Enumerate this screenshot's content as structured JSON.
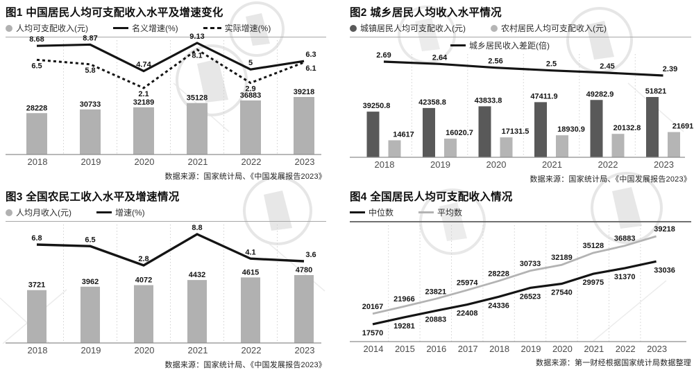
{
  "colors": {
    "bar_gray": "#b1b1b1",
    "bar_dark": "#595959",
    "bar_light": "#b5b5b5",
    "line_black": "#141414",
    "line_gray": "#b3b3b3",
    "grid": "#d0d0d0",
    "axis": "#8d8d8d"
  },
  "charts": [
    {
      "title": "图1 中国居民人均可支配收入水平及增速变化",
      "source": "数据来源：国家统计局、《中国发展报告2023》",
      "legend": [
        [
          {
            "swatch": "dot",
            "color": "#b1b1b1",
            "label": "人均可支配收入(元)"
          },
          {
            "swatch": "line",
            "color": "#141414",
            "label": "名义增速(%)"
          },
          {
            "swatch": "dashed",
            "color": "#141414",
            "label": "实际增速(%)"
          }
        ]
      ],
      "chart_data": {
        "type": "bar+line",
        "categories": [
          "2018",
          "2019",
          "2020",
          "2021",
          "2022",
          "2023"
        ],
        "series": [
          {
            "name": "人均可支配收入(元)",
            "kind": "bar",
            "color": "#b1b1b1",
            "values": [
              28228,
              30733,
              32189,
              35128,
              36883,
              39218
            ],
            "labels": [
              "28228",
              "30733",
              "32189",
              "35128",
              "36883",
              "39218"
            ]
          },
          {
            "name": "名义增速(%)",
            "kind": "line",
            "color": "#141414",
            "values": [
              8.68,
              8.87,
              4.74,
              9.13,
              5,
              6.3
            ],
            "labels": [
              "8.68",
              "8.87",
              "4.74",
              "9.13",
              "5",
              "6.3"
            ]
          },
          {
            "name": "实际增速(%)",
            "kind": "dashed-line",
            "color": "#141414",
            "values": [
              6.5,
              5.8,
              2.1,
              8.1,
              2.9,
              6.1
            ],
            "labels": [
              "6.5",
              "5.8",
              "2.1",
              "8.1",
              "2.9",
              "6.1"
            ]
          }
        ],
        "legend_position": "top",
        "grid": "vertical-dotted"
      }
    },
    {
      "title": "图2 城乡居民人均收入水平情况",
      "source": "数据来源：国家统计局、《中国发展报告2023》",
      "legend": [
        [
          {
            "swatch": "dot",
            "color": "#595959",
            "label": "城镇居民人均可支配收入(元)"
          },
          {
            "swatch": "dot",
            "color": "#b5b5b5",
            "label": "农村居民人均可支配收入(元)"
          }
        ],
        [
          {
            "swatch": "line",
            "color": "#141414",
            "label": "城乡居民收入差距(倍)"
          }
        ]
      ],
      "chart_data": {
        "type": "bar+line",
        "categories": [
          "2018",
          "2019",
          "2020",
          "2021",
          "2022",
          "2023"
        ],
        "series": [
          {
            "name": "城镇居民人均可支配收入(元)",
            "kind": "bar",
            "color": "#595959",
            "values": [
              39250.8,
              42358.8,
              43833.8,
              47411.9,
              49282.9,
              51821
            ],
            "labels": [
              "39250.8",
              "42358.8",
              "43833.8",
              "47411.9",
              "49282.9",
              "51821"
            ]
          },
          {
            "name": "农村居民人均可支配收入(元)",
            "kind": "bar",
            "color": "#b5b5b5",
            "values": [
              14617,
              16020.7,
              17131.5,
              18930.9,
              20132.8,
              21691
            ],
            "labels": [
              "14617",
              "16020.7",
              "17131.5",
              "18930.9",
              "20132.8",
              "21691"
            ]
          },
          {
            "name": "城乡居民收入差距(倍)",
            "kind": "line",
            "color": "#141414",
            "values": [
              2.69,
              2.64,
              2.56,
              2.5,
              2.45,
              2.39
            ],
            "labels": [
              "2.69",
              "2.64",
              "2.56",
              "2.5",
              "2.45",
              "2.39"
            ]
          }
        ],
        "legend_position": "top",
        "grid": "vertical-dotted"
      }
    },
    {
      "title": "图3 全国农民工收入水平及增速情况",
      "source": "数据来源：国家统计局、《中国发展报告2023》",
      "legend": [
        [
          {
            "swatch": "dot",
            "color": "#b1b1b1",
            "label": "人均月收入(元)"
          },
          {
            "swatch": "line",
            "color": "#141414",
            "label": "增速(%)"
          }
        ]
      ],
      "chart_data": {
        "type": "bar+line",
        "categories": [
          "2018",
          "2019",
          "2020",
          "2021",
          "2022",
          "2023"
        ],
        "series": [
          {
            "name": "人均月收入(元)",
            "kind": "bar",
            "color": "#b1b1b1",
            "values": [
              3721,
              3962,
              4072,
              4432,
              4615,
              4780
            ],
            "labels": [
              "3721",
              "3962",
              "4072",
              "4432",
              "4615",
              "4780"
            ]
          },
          {
            "name": "增速(%)",
            "kind": "line",
            "color": "#141414",
            "values": [
              6.8,
              6.5,
              2.8,
              8.8,
              4.1,
              3.6
            ],
            "labels": [
              "6.8",
              "6.5",
              "2.8",
              "8.8",
              "4.1",
              "3.6"
            ]
          }
        ],
        "legend_position": "top",
        "grid": "vertical-dotted"
      }
    },
    {
      "title": "图4 全国居民人均可支配收入情况",
      "source": "数据来源：第一财经根据国家统计局数据整理",
      "legend": [
        [
          {
            "swatch": "line",
            "color": "#141414",
            "label": "中位数"
          },
          {
            "swatch": "line",
            "color": "#b3b3b3",
            "label": "平均数"
          }
        ]
      ],
      "chart_data": {
        "type": "line",
        "categories": [
          "2014",
          "2015",
          "2016",
          "2017",
          "2018",
          "2019",
          "2020",
          "2021",
          "2022",
          "2023"
        ],
        "series": [
          {
            "name": "中位数",
            "kind": "line",
            "color": "#141414",
            "values": [
              17570,
              19281,
              20883,
              22408,
              24336,
              26523,
              27540,
              29975,
              31370,
              33036
            ],
            "labels": [
              "17570",
              "19281",
              "20883",
              "22408",
              "24336",
              "26523",
              "27540",
              "29975",
              "31370",
              "33036"
            ]
          },
          {
            "name": "平均数",
            "kind": "line",
            "color": "#b3b3b3",
            "values": [
              20167,
              21966,
              23821,
              25974,
              28228,
              30733,
              32189,
              35128,
              36883,
              39218
            ],
            "labels": [
              "20167",
              "21966",
              "23821",
              "25974",
              "28228",
              "30733",
              "32189",
              "35128",
              "36883",
              "39218"
            ]
          }
        ],
        "legend_position": "top",
        "grid": "vertical-dotted"
      }
    }
  ]
}
